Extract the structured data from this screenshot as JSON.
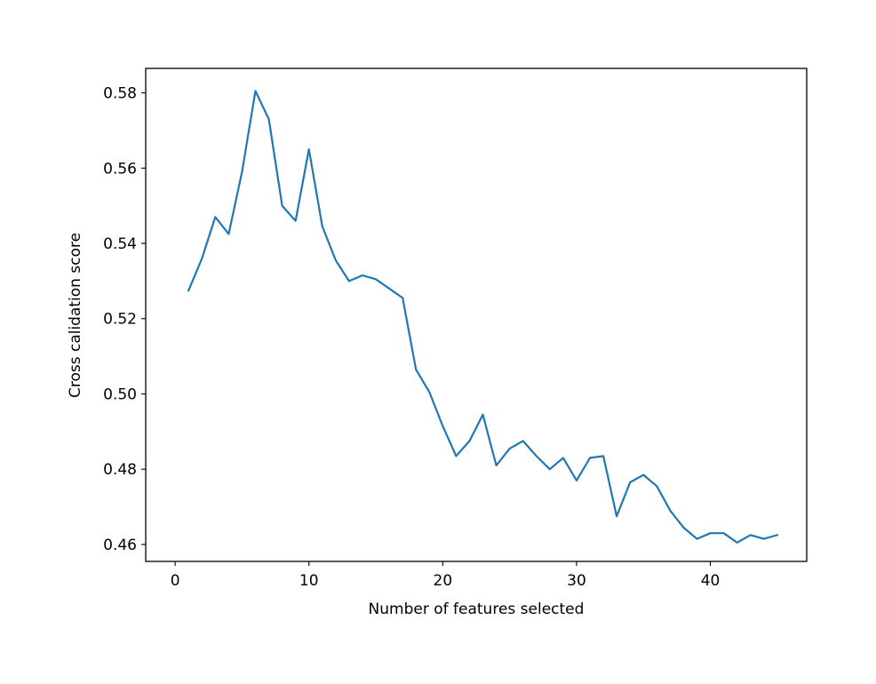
{
  "chart_data": {
    "type": "line",
    "title": "",
    "xlabel": "Number of features selected",
    "ylabel": "Cross calidation score",
    "xlim": [
      -2.2,
      47.2
    ],
    "ylim": [
      0.4555,
      0.5865
    ],
    "xticks": [
      0,
      10,
      20,
      30,
      40
    ],
    "xtick_labels": [
      "0",
      "10",
      "20",
      "30",
      "40"
    ],
    "yticks": [
      0.46,
      0.48,
      0.5,
      0.52,
      0.54,
      0.56,
      0.58
    ],
    "ytick_labels": [
      "0.46",
      "0.48",
      "0.50",
      "0.52",
      "0.54",
      "0.56",
      "0.58"
    ],
    "grid": false,
    "legend": "none",
    "series": [
      {
        "color": "#1f77b4",
        "x": [
          1,
          2,
          3,
          4,
          5,
          6,
          7,
          8,
          9,
          10,
          11,
          12,
          13,
          14,
          15,
          16,
          17,
          18,
          19,
          20,
          21,
          22,
          23,
          24,
          25,
          26,
          27,
          28,
          29,
          30,
          31,
          32,
          33,
          34,
          35,
          36,
          37,
          38,
          39,
          40,
          41,
          42,
          43,
          44,
          45
        ],
        "y": [
          0.5275,
          0.536,
          0.547,
          0.5425,
          0.559,
          0.5805,
          0.573,
          0.55,
          0.546,
          0.565,
          0.5445,
          0.5355,
          0.53,
          0.5315,
          0.5305,
          0.528,
          0.5255,
          0.5065,
          0.5005,
          0.4915,
          0.4835,
          0.4875,
          0.4945,
          0.481,
          0.4855,
          0.4875,
          0.4835,
          0.48,
          0.483,
          0.477,
          0.483,
          0.4835,
          0.4675,
          0.4765,
          0.4785,
          0.4755,
          0.469,
          0.4645,
          0.4615,
          0.463,
          0.463,
          0.4605,
          0.4625,
          0.4615,
          0.4625
        ]
      }
    ]
  }
}
